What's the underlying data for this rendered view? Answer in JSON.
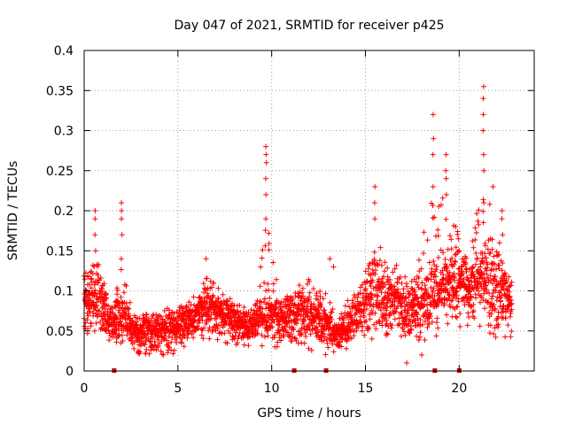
{
  "chart_data": {
    "type": "scatter",
    "title": "Day 047 of 2021, SRMTID for receiver p425",
    "xlabel": "GPS time / hours",
    "ylabel": "SRMTID / TECUs",
    "xlim": [
      0,
      24
    ],
    "ylim": [
      0,
      0.4
    ],
    "x_ticks": [
      "0",
      "5",
      "10",
      "15",
      "20"
    ],
    "y_ticks": [
      "0",
      "0.05",
      "0.1",
      "0.15",
      "0.2",
      "0.25",
      "0.3",
      "0.35",
      "0.4"
    ],
    "grid": true,
    "marker": "+",
    "series": [
      {
        "name": "SRMTID",
        "color": "#ff0000",
        "description": "Dense point cloud; per-hour envelope used to regenerate the points",
        "hourly_envelope": [
          {
            "hour": 0.0,
            "low": 0.03,
            "mid": 0.07,
            "high": 0.13
          },
          {
            "hour": 0.5,
            "low": 0.04,
            "mid": 0.09,
            "high": 0.2
          },
          {
            "hour": 1.0,
            "low": 0.04,
            "mid": 0.07,
            "high": 0.12
          },
          {
            "hour": 1.5,
            "low": 0.03,
            "mid": 0.06,
            "high": 0.09
          },
          {
            "hour": 2.0,
            "low": 0.03,
            "mid": 0.06,
            "high": 0.21
          },
          {
            "hour": 2.5,
            "low": 0.02,
            "mid": 0.05,
            "high": 0.08
          },
          {
            "hour": 3.0,
            "low": 0.02,
            "mid": 0.05,
            "high": 0.08
          },
          {
            "hour": 4.0,
            "low": 0.02,
            "mid": 0.05,
            "high": 0.09
          },
          {
            "hour": 5.0,
            "low": 0.02,
            "mid": 0.05,
            "high": 0.09
          },
          {
            "hour": 6.0,
            "low": 0.04,
            "mid": 0.07,
            "high": 0.1
          },
          {
            "hour": 6.5,
            "low": 0.04,
            "mid": 0.08,
            "high": 0.14
          },
          {
            "hour": 7.0,
            "low": 0.04,
            "mid": 0.07,
            "high": 0.11
          },
          {
            "hour": 8.0,
            "low": 0.03,
            "mid": 0.06,
            "high": 0.1
          },
          {
            "hour": 9.0,
            "low": 0.03,
            "mid": 0.05,
            "high": 0.08
          },
          {
            "hour": 9.7,
            "low": 0.03,
            "mid": 0.06,
            "high": 0.28
          },
          {
            "hour": 10.5,
            "low": 0.03,
            "mid": 0.06,
            "high": 0.1
          },
          {
            "hour": 11.5,
            "low": 0.03,
            "mid": 0.07,
            "high": 0.13
          },
          {
            "hour": 12.5,
            "low": 0.02,
            "mid": 0.06,
            "high": 0.18
          },
          {
            "hour": 13.5,
            "low": 0.02,
            "mid": 0.04,
            "high": 0.09
          },
          {
            "hour": 14.5,
            "low": 0.03,
            "mid": 0.06,
            "high": 0.11
          },
          {
            "hour": 15.5,
            "low": 0.04,
            "mid": 0.09,
            "high": 0.23
          },
          {
            "hour": 16.5,
            "low": 0.04,
            "mid": 0.08,
            "high": 0.16
          },
          {
            "hour": 17.5,
            "low": 0.03,
            "mid": 0.07,
            "high": 0.14
          },
          {
            "hour": 18.5,
            "low": 0.04,
            "mid": 0.08,
            "high": 0.32
          },
          {
            "hour": 19.5,
            "low": 0.05,
            "mid": 0.1,
            "high": 0.27
          },
          {
            "hour": 20.5,
            "low": 0.05,
            "mid": 0.09,
            "high": 0.17
          },
          {
            "hour": 21.3,
            "low": 0.05,
            "mid": 0.1,
            "high": 0.35
          },
          {
            "hour": 22.0,
            "low": 0.04,
            "mid": 0.1,
            "high": 0.2
          },
          {
            "hour": 22.8,
            "low": 0.04,
            "mid": 0.08,
            "high": 0.12
          }
        ],
        "spikes": [
          {
            "x": 0.6,
            "values": [
              0.15,
              0.17,
              0.19,
              0.2
            ]
          },
          {
            "x": 2.0,
            "values": [
              0.14,
              0.17,
              0.19,
              0.2,
              0.21
            ]
          },
          {
            "x": 9.7,
            "values": [
              0.19,
              0.22,
              0.24,
              0.26,
              0.27,
              0.28
            ]
          },
          {
            "x": 15.5,
            "values": [
              0.19,
              0.21,
              0.23
            ]
          },
          {
            "x": 18.6,
            "values": [
              0.23,
              0.27,
              0.29,
              0.32
            ]
          },
          {
            "x": 19.3,
            "values": [
              0.22,
              0.24,
              0.25,
              0.27
            ]
          },
          {
            "x": 21.3,
            "values": [
              0.21,
              0.25,
              0.27,
              0.3,
              0.32,
              0.34,
              0.355
            ]
          },
          {
            "x": 22.3,
            "values": [
              0.17,
              0.19,
              0.2
            ]
          }
        ],
        "outliers": [
          {
            "x": 6.5,
            "y": 0.14
          },
          {
            "x": 13.1,
            "y": 0.14
          },
          {
            "x": 13.3,
            "y": 0.13
          },
          {
            "x": 17.2,
            "y": 0.01
          },
          {
            "x": 18.0,
            "y": 0.02
          },
          {
            "x": 20.0,
            "y": 0.15
          },
          {
            "x": 21.8,
            "y": 0.23
          }
        ]
      }
    ],
    "zero_markers": {
      "color": "#cc0000",
      "x": [
        1.6,
        11.2,
        12.9,
        18.7,
        20.0
      ]
    }
  }
}
